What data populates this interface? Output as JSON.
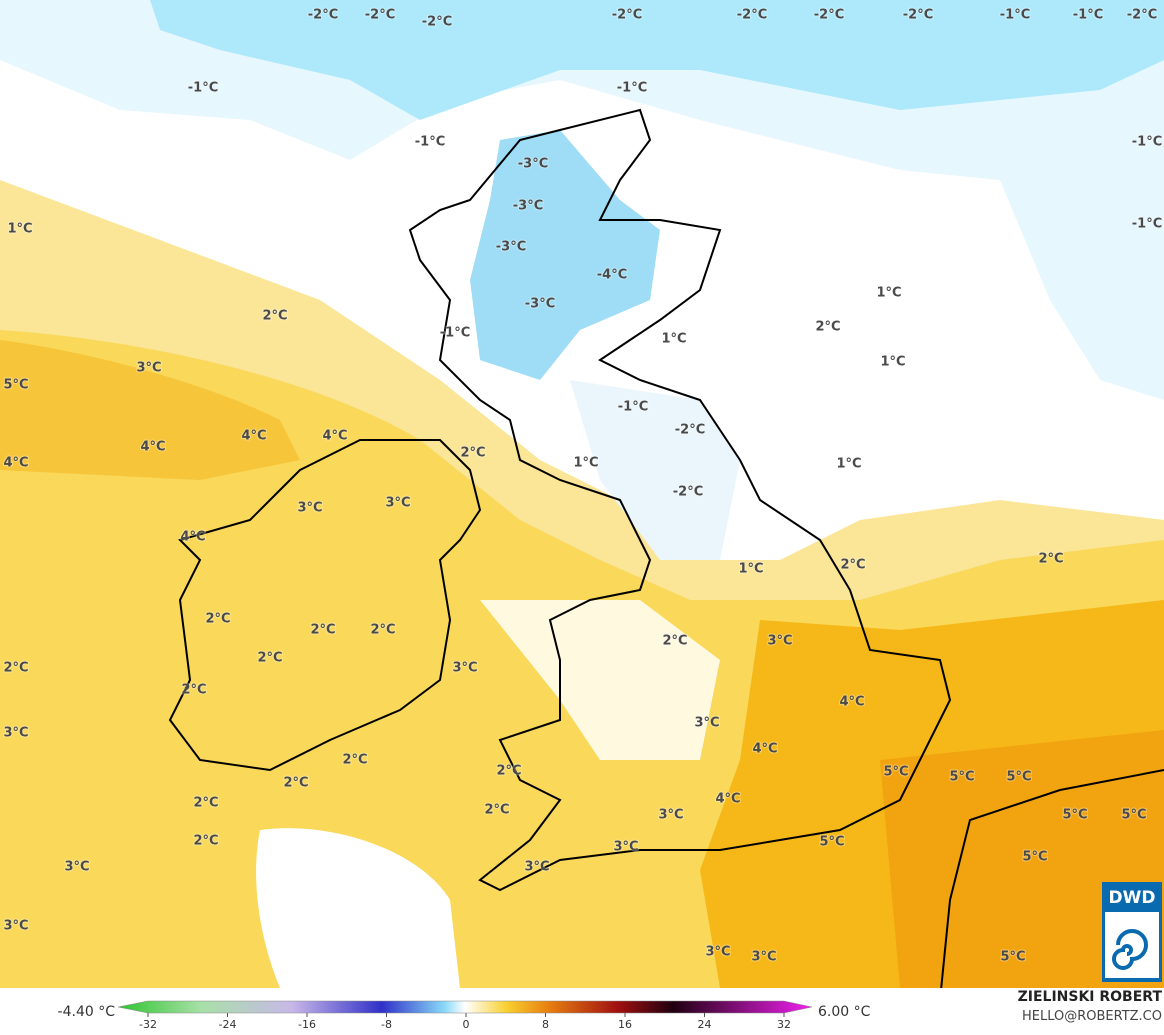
{
  "map": {
    "labels": [
      "-2°C",
      "-2°C",
      "-2°C",
      "-2°C",
      "-2°C",
      "-2°C",
      "-2°C",
      "-2°C",
      "-1°C",
      "-1°C",
      "-1°C",
      "-1°C",
      "-1°C",
      "-1°C",
      "-1°C",
      "-3°C",
      "-3°C",
      "-3°C",
      "-4°C",
      "-3°C",
      "-1°C",
      "1°C",
      "1°C",
      "1°C",
      "1°C",
      "1°C",
      "1°C",
      "1°C",
      "-1°C",
      "-2°C",
      "-2°C",
      "2°C",
      "2°C",
      "2°C",
      "2°C",
      "2°C",
      "2°C",
      "2°C",
      "2°C",
      "2°C",
      "2°C",
      "2°C",
      "2°C",
      "2°C",
      "2°C",
      "2°C",
      "2°C",
      "2°C",
      "2°C",
      "3°C",
      "3°C",
      "3°C",
      "3°C",
      "3°C",
      "3°C",
      "3°C",
      "3°C",
      "3°C",
      "3°C",
      "3°C",
      "3°C",
      "3°C",
      "3°C",
      "4°C",
      "4°C",
      "4°C",
      "4°C",
      "4°C",
      "4°C",
      "4°C",
      "4°C",
      "5°C",
      "5°C",
      "5°C",
      "5°C",
      "5°C",
      "5°C",
      "5°C",
      "5°C",
      "5°C"
    ]
  },
  "legend": {
    "min": "-4.40 °C",
    "max": "6.00 °C",
    "ticks": [
      -32,
      -24,
      -16,
      -8,
      0,
      8,
      16,
      24,
      32
    ]
  },
  "credit": {
    "author": "ZIELINSKI ROBERT",
    "email": "HELLO@ROBERTZ.CO",
    "logo": "DWD"
  }
}
